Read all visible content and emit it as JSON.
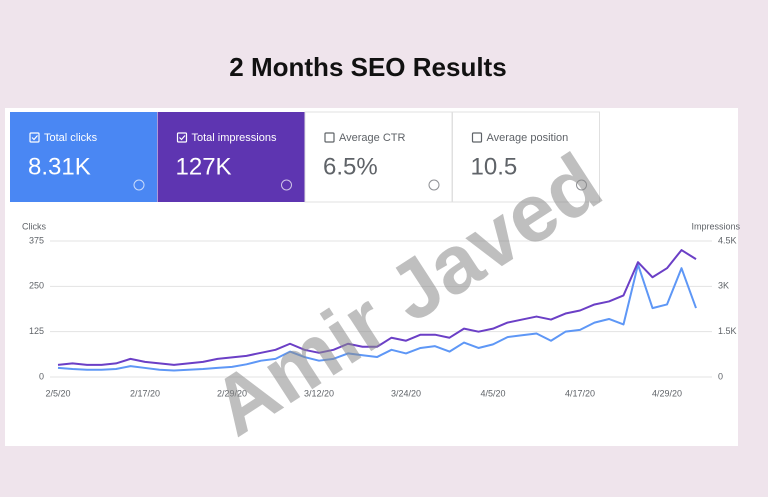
{
  "title": "2 Months SEO Results",
  "watermark": "Amir Javed",
  "cards": [
    {
      "label": "Total clicks",
      "value": "8.31K"
    },
    {
      "label": "Total impressions",
      "value": "127K"
    },
    {
      "label": "Average CTR",
      "value": "6.5%"
    },
    {
      "label": "Average position",
      "value": "10.5"
    }
  ],
  "chart_data": {
    "type": "line",
    "y_label": "Clicks",
    "y2_label": "Impressions",
    "categories": [
      "2/5/20",
      null,
      null,
      null,
      null,
      null,
      "2/17/20",
      null,
      null,
      null,
      null,
      null,
      "2/29/20",
      null,
      null,
      null,
      null,
      null,
      "3/12/20",
      null,
      null,
      null,
      null,
      null,
      "3/24/20",
      null,
      null,
      null,
      null,
      null,
      "4/5/20",
      null,
      null,
      null,
      null,
      null,
      "4/17/20",
      null,
      null,
      null,
      null,
      null,
      "4/29/20",
      null,
      null
    ],
    "ylim": [
      0,
      375
    ],
    "yticks": [
      0,
      125,
      250,
      375
    ],
    "y2lim": [
      0,
      4500
    ],
    "y2ticks": [
      0,
      {
        "value": 1500,
        "label": "1.5K"
      },
      {
        "value": 3000,
        "label": "3K"
      },
      {
        "value": 4500,
        "label": "4.5K"
      }
    ],
    "grid": true,
    "series": [
      {
        "color": "#5e97f6",
        "values": [
          25,
          22,
          20,
          20,
          22,
          30,
          25,
          20,
          18,
          20,
          22,
          25,
          28,
          35,
          45,
          50,
          70,
          55,
          45,
          50,
          65,
          60,
          55,
          75,
          65,
          80,
          85,
          70,
          95,
          80,
          90,
          110,
          115,
          120,
          100,
          125,
          130,
          150,
          160,
          145,
          310,
          190,
          200,
          300,
          190
        ]
      },
      {
        "color": "#6b3fc6",
        "axis": "y2",
        "values": [
          400,
          450,
          400,
          400,
          450,
          600,
          500,
          450,
          400,
          450,
          500,
          600,
          650,
          700,
          800,
          900,
          1100,
          900,
          800,
          900,
          1100,
          1000,
          1000,
          1300,
          1200,
          1400,
          1400,
          1300,
          1600,
          1500,
          1600,
          1800,
          1900,
          2000,
          1900,
          2100,
          2200,
          2400,
          2500,
          2700,
          3800,
          3300,
          3600,
          4200,
          3900
        ]
      }
    ]
  }
}
